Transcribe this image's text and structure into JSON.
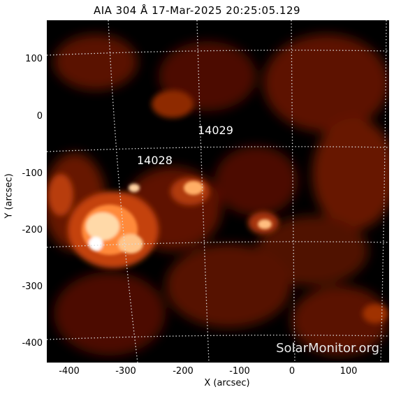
{
  "title": "AIA 304 Å 17-Mar-2025 20:25:05.129",
  "axes": {
    "xlabel": "X (arcsec)",
    "ylabel": "Y (arcsec)",
    "x_ticks": [
      "-400",
      "-300",
      "-200",
      "-100",
      "0",
      "100"
    ],
    "y_ticks": [
      "100",
      "0",
      "-100",
      "-200",
      "-300",
      "-400"
    ]
  },
  "regions": [
    {
      "id": "14029"
    },
    {
      "id": "14028"
    }
  ],
  "credit": "SolarMonitor.org",
  "colors": {
    "background": "#000000",
    "low": "#4a0b00",
    "mid": "#b83a0a",
    "high": "#ff9d45",
    "peak": "#ffffff",
    "grid": "#dcdcdc"
  }
}
